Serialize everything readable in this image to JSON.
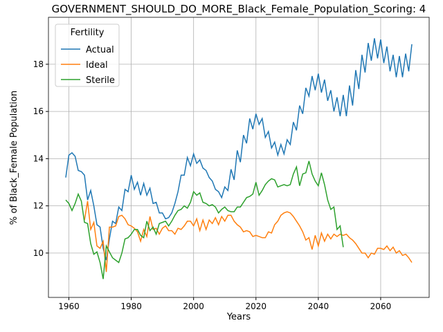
{
  "chart_data": {
    "type": "line",
    "title": "GOVERNMENT_SHOULD_DO_MORE_Black_Female_Population_Scoring: 4",
    "x_label": "Years",
    "y_label": "% of Black_Female Population",
    "legend_title": "Fertility",
    "legend_loc": "upper left",
    "grid": true,
    "xlim": [
      1953.45,
      2075.55
    ],
    "ylim": [
      8.12,
      19.99
    ],
    "xticks": [
      1960,
      1980,
      2000,
      2020,
      2040,
      2060
    ],
    "yticks": [
      10,
      12,
      14,
      16,
      18
    ],
    "x": [
      1959,
      1960,
      1961,
      1962,
      1963,
      1964,
      1965,
      1966,
      1967,
      1968,
      1969,
      1970,
      1971,
      1972,
      1973,
      1974,
      1975,
      1976,
      1977,
      1978,
      1979,
      1980,
      1981,
      1982,
      1983,
      1984,
      1985,
      1986,
      1987,
      1988,
      1989,
      1990,
      1991,
      1992,
      1993,
      1994,
      1995,
      1996,
      1997,
      1998,
      1999,
      2000,
      2001,
      2002,
      2003,
      2004,
      2005,
      2006,
      2007,
      2008,
      2009,
      2010,
      2011,
      2012,
      2013,
      2014,
      2015,
      2016,
      2017,
      2018,
      2019,
      2020,
      2021,
      2022,
      2023,
      2024,
      2025,
      2026,
      2027,
      2028,
      2029,
      2030,
      2031,
      2032,
      2033,
      2034,
      2035,
      2036,
      2037,
      2038,
      2039,
      2040,
      2041,
      2042,
      2043,
      2044,
      2045,
      2046,
      2047,
      2048,
      2049,
      2050,
      2051,
      2052,
      2053,
      2054,
      2055,
      2056,
      2057,
      2058,
      2059,
      2060,
      2061,
      2062,
      2063,
      2064,
      2065,
      2066,
      2067,
      2068,
      2069,
      2070
    ],
    "series": [
      {
        "name": "Actual",
        "color": "#1f77b4",
        "values": [
          13.2,
          14.15,
          14.25,
          14.1,
          13.5,
          13.45,
          13.3,
          12.25,
          12.65,
          12.0,
          11.2,
          11.1,
          10.2,
          9.7,
          10.6,
          11.35,
          11.25,
          11.95,
          11.8,
          12.7,
          12.6,
          13.3,
          12.7,
          13.0,
          12.45,
          12.95,
          12.45,
          12.75,
          12.1,
          12.15,
          11.7,
          11.7,
          11.45,
          11.5,
          11.7,
          12.1,
          12.6,
          13.3,
          13.3,
          14.05,
          13.7,
          14.2,
          13.8,
          13.95,
          13.6,
          13.5,
          13.2,
          13.05,
          12.7,
          12.6,
          12.35,
          12.8,
          12.65,
          13.55,
          13.1,
          14.35,
          13.85,
          15.0,
          14.65,
          15.7,
          15.25,
          15.9,
          15.45,
          15.7,
          14.9,
          15.15,
          14.45,
          14.7,
          14.15,
          14.6,
          14.2,
          14.8,
          14.6,
          15.55,
          15.2,
          16.25,
          15.9,
          17.0,
          16.65,
          17.5,
          16.9,
          17.6,
          16.8,
          17.35,
          16.45,
          16.9,
          16.0,
          16.6,
          15.8,
          16.7,
          15.8,
          17.1,
          16.25,
          17.75,
          16.95,
          18.4,
          17.65,
          18.9,
          18.15,
          19.1,
          18.25,
          19.05,
          18.05,
          18.75,
          17.7,
          18.4,
          17.45,
          18.35,
          17.45,
          18.45,
          17.7,
          18.85
        ]
      },
      {
        "name": "Ideal",
        "color": "#ff7f0e",
        "values": [
          null,
          null,
          null,
          null,
          null,
          null,
          11.4,
          12.2,
          11.0,
          11.3,
          10.3,
          10.2,
          10.5,
          9.2,
          11.1,
          11.1,
          11.15,
          11.55,
          11.6,
          11.45,
          11.2,
          11.15,
          11.05,
          10.9,
          10.5,
          11.0,
          10.7,
          11.55,
          11.0,
          11.05,
          10.8,
          11.05,
          11.15,
          10.95,
          10.95,
          10.8,
          11.05,
          11.0,
          11.15,
          11.35,
          11.35,
          11.15,
          11.45,
          10.95,
          11.4,
          11.0,
          11.4,
          11.25,
          11.5,
          11.2,
          11.55,
          11.35,
          11.6,
          11.6,
          11.35,
          11.2,
          11.1,
          10.9,
          10.95,
          10.9,
          10.7,
          10.75,
          10.7,
          10.65,
          10.65,
          10.9,
          10.85,
          11.2,
          11.35,
          11.6,
          11.7,
          11.75,
          11.7,
          11.55,
          11.35,
          11.15,
          10.9,
          10.55,
          10.65,
          10.15,
          10.75,
          10.3,
          10.85,
          10.5,
          10.8,
          10.6,
          10.8,
          10.7,
          10.8,
          10.75,
          10.8,
          10.65,
          10.55,
          10.4,
          10.2,
          10.0,
          10.0,
          9.8,
          10.0,
          9.95,
          10.2,
          10.2,
          10.15,
          10.3,
          10.1,
          10.25,
          10.0,
          10.1,
          9.9,
          9.95,
          9.8,
          9.6
        ]
      },
      {
        "name": "Sterile",
        "color": "#2ca02c",
        "values": [
          12.25,
          12.1,
          11.8,
          12.1,
          12.5,
          12.2,
          11.3,
          11.25,
          10.4,
          9.95,
          10.05,
          9.6,
          8.9,
          10.3,
          10.05,
          9.8,
          9.7,
          9.6,
          10.0,
          10.6,
          10.65,
          10.8,
          11.0,
          11.0,
          10.75,
          10.65,
          11.35,
          10.95,
          11.1,
          10.8,
          11.25,
          11.3,
          11.35,
          11.15,
          11.35,
          11.6,
          11.8,
          11.85,
          12.0,
          11.9,
          12.15,
          12.6,
          12.45,
          12.55,
          12.15,
          12.1,
          12.0,
          12.05,
          11.95,
          11.7,
          11.85,
          11.95,
          11.8,
          11.75,
          11.75,
          11.95,
          11.95,
          12.15,
          12.35,
          12.4,
          12.5,
          13.0,
          12.45,
          12.65,
          12.9,
          13.05,
          13.15,
          13.1,
          12.8,
          12.85,
          12.9,
          12.85,
          12.9,
          13.35,
          13.65,
          12.85,
          13.35,
          13.4,
          13.9,
          13.35,
          13.05,
          12.85,
          13.4,
          12.9,
          12.25,
          11.85,
          11.95,
          11.0,
          11.15,
          10.25,
          null,
          null,
          null,
          null,
          null,
          null,
          null,
          null,
          null,
          null,
          null,
          null,
          null,
          null,
          null,
          null,
          null,
          null,
          null,
          null,
          null,
          null
        ]
      }
    ]
  }
}
